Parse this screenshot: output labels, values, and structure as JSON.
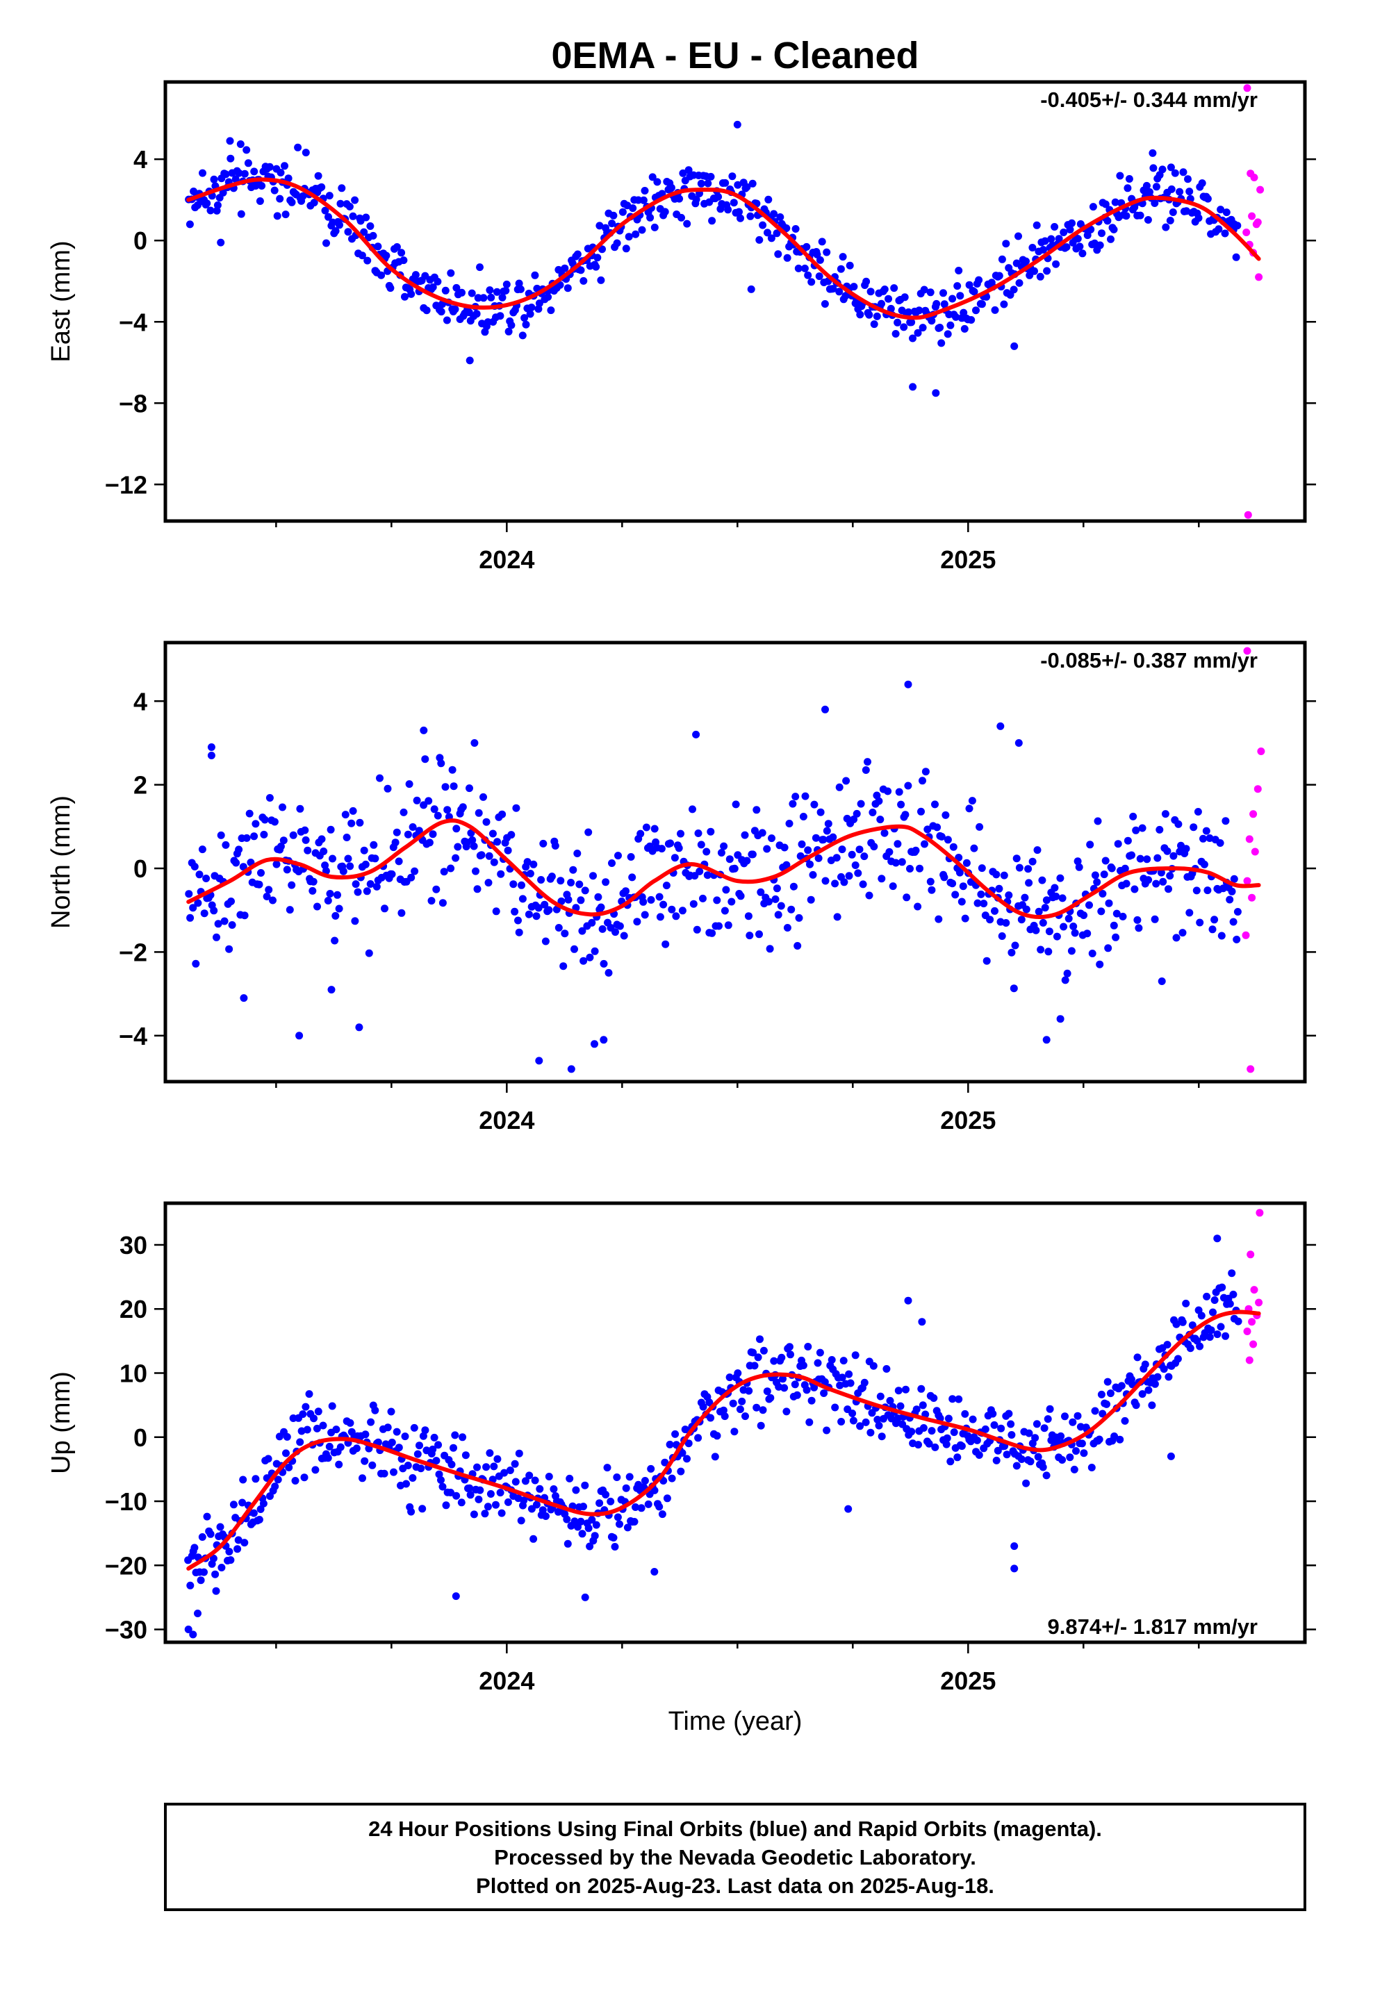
{
  "title": "0EMA  - EU - Cleaned",
  "xlabel": "Time (year)",
  "footer": {
    "line1": "24 Hour Positions Using Final Orbits (blue) and Rapid Orbits (magenta).",
    "line2": "Processed by the Nevada Geodetic Laboratory.",
    "line3": "Plotted on 2025-Aug-23. Last data on 2025-Aug-18."
  },
  "colors": {
    "final": "#0000ff",
    "rapid": "#ff00ff",
    "fit": "#ff0000"
  },
  "chart_data": [
    {
      "type": "scatter",
      "ylabel": "East (mm)",
      "rate_label": "-0.405+/- 0.344 mm/yr",
      "xlim": [
        2023.26,
        2025.73
      ],
      "ylim": [
        -13.8,
        7.8
      ],
      "yticks": [
        4,
        0,
        -4,
        -8,
        -12
      ],
      "ytick_labels": [
        "4",
        "0",
        "−4",
        "−8",
        "−12"
      ],
      "xticks": [
        2024,
        2025
      ],
      "xtick_labels": [
        "2024",
        "2025"
      ],
      "fit": {
        "x": [
          2023.31,
          2023.4,
          2023.47,
          2023.55,
          2023.65,
          2023.75,
          2023.85,
          2023.95,
          2024.05,
          2024.15,
          2024.25,
          2024.35,
          2024.42,
          2024.5,
          2024.6,
          2024.7,
          2024.8,
          2024.88,
          2024.95,
          2025.05,
          2025.15,
          2025.25,
          2025.35,
          2025.41,
          2025.5,
          2025.57,
          2025.63
        ],
        "y": [
          2.0,
          2.7,
          3.0,
          2.6,
          1.0,
          -1.4,
          -2.8,
          -3.3,
          -2.8,
          -1.3,
          0.8,
          2.2,
          2.5,
          2.2,
          0.4,
          -1.8,
          -3.3,
          -3.8,
          -3.4,
          -2.4,
          -1.0,
          0.6,
          1.8,
          2.1,
          1.7,
          0.5,
          -0.9
        ]
      },
      "final_points": {
        "anchors_x": [
          2023.31,
          2023.4,
          2023.47,
          2023.55,
          2023.65,
          2023.75,
          2023.85,
          2023.95,
          2024.05,
          2024.15,
          2024.25,
          2024.35,
          2024.42,
          2024.5,
          2024.6,
          2024.7,
          2024.8,
          2024.88,
          2024.95,
          2025.05,
          2025.15,
          2025.25,
          2025.35,
          2025.41,
          2025.5,
          2025.58
        ],
        "anchors_y": [
          2.0,
          2.7,
          3.0,
          2.6,
          1.0,
          -1.4,
          -2.8,
          -3.3,
          -2.8,
          -1.3,
          0.8,
          2.2,
          2.5,
          2.2,
          0.4,
          -1.8,
          -3.3,
          -3.8,
          -3.4,
          -2.4,
          -1.0,
          0.6,
          1.8,
          2.1,
          1.7,
          0.3
        ],
        "x_start": 2023.31,
        "x_end": 2025.585,
        "step": 0.0034,
        "spread": 1.0,
        "outliers": [
          [
            2023.4,
            4.9
          ],
          [
            2023.38,
            -0.1
          ],
          [
            2023.92,
            -5.9
          ],
          [
            2024.5,
            5.7
          ],
          [
            2024.53,
            -2.4
          ],
          [
            2024.88,
            -7.2
          ],
          [
            2024.93,
            -7.5
          ],
          [
            2025.1,
            -5.2
          ],
          [
            2025.4,
            4.3
          ],
          [
            2025.44,
            3.6
          ]
        ]
      },
      "rapid_points": [
        [
          2025.605,
          7.5
        ],
        [
          2025.612,
          3.3
        ],
        [
          2025.62,
          3.1
        ],
        [
          2025.633,
          2.5
        ],
        [
          2025.615,
          1.2
        ],
        [
          2025.625,
          0.8
        ],
        [
          2025.603,
          0.4
        ],
        [
          2025.61,
          -0.2
        ],
        [
          2025.618,
          -0.6
        ],
        [
          2025.628,
          0.9
        ],
        [
          2025.63,
          -1.8
        ],
        [
          2025.607,
          -13.5
        ]
      ]
    },
    {
      "type": "scatter",
      "ylabel": "North (mm)",
      "rate_label": "-0.085+/- 0.387 mm/yr",
      "xlim": [
        2023.26,
        2025.73
      ],
      "ylim": [
        -5.1,
        5.4
      ],
      "yticks": [
        4,
        2,
        0,
        -2,
        -4
      ],
      "ytick_labels": [
        "4",
        "2",
        "0",
        "−2",
        "−4"
      ],
      "xticks": [
        2024,
        2025
      ],
      "xtick_labels": [
        "2024",
        "2025"
      ],
      "fit": {
        "x": [
          2023.31,
          2023.4,
          2023.48,
          2023.55,
          2023.62,
          2023.7,
          2023.78,
          2023.86,
          2023.92,
          2024.0,
          2024.1,
          2024.18,
          2024.25,
          2024.32,
          2024.4,
          2024.5,
          2024.58,
          2024.66,
          2024.75,
          2024.85,
          2024.9,
          2024.97,
          2025.05,
          2025.12,
          2025.19,
          2025.27,
          2025.35,
          2025.45,
          2025.52,
          2025.58,
          2025.63
        ],
        "y": [
          -0.8,
          -0.3,
          0.2,
          0.1,
          -0.2,
          -0.1,
          0.5,
          1.1,
          1.0,
          0.2,
          -0.8,
          -1.1,
          -0.9,
          -0.3,
          0.1,
          -0.3,
          -0.2,
          0.3,
          0.8,
          1.0,
          0.8,
          0.2,
          -0.6,
          -1.1,
          -1.1,
          -0.6,
          -0.1,
          0.0,
          -0.1,
          -0.4,
          -0.4
        ]
      },
      "final_points": {
        "anchors_x": [
          2023.31,
          2023.4,
          2023.48,
          2023.55,
          2023.62,
          2023.7,
          2023.78,
          2023.86,
          2023.92,
          2024.0,
          2024.1,
          2024.18,
          2024.25,
          2024.32,
          2024.4,
          2024.5,
          2024.58,
          2024.66,
          2024.75,
          2024.85,
          2024.9,
          2024.97,
          2025.05,
          2025.12,
          2025.19,
          2025.27,
          2025.35,
          2025.45,
          2025.52,
          2025.58
        ],
        "anchors_y": [
          -0.8,
          -0.3,
          0.2,
          0.1,
          -0.2,
          -0.1,
          0.5,
          1.1,
          1.0,
          0.2,
          -0.8,
          -1.1,
          -0.9,
          -0.3,
          0.1,
          -0.3,
          -0.2,
          0.3,
          0.8,
          1.0,
          0.8,
          0.2,
          -0.6,
          -1.1,
          -1.1,
          -0.6,
          -0.1,
          0.0,
          -0.1,
          -0.4
        ],
        "x_start": 2023.31,
        "x_end": 2025.585,
        "step": 0.0034,
        "spread": 1.15,
        "outliers": [
          [
            2023.36,
            2.9
          ],
          [
            2023.36,
            2.7
          ],
          [
            2023.43,
            -3.1
          ],
          [
            2023.55,
            -4.0
          ],
          [
            2023.62,
            -2.9
          ],
          [
            2023.68,
            -3.8
          ],
          [
            2023.82,
            3.3
          ],
          [
            2023.93,
            3.0
          ],
          [
            2024.07,
            -4.6
          ],
          [
            2024.14,
            -4.8
          ],
          [
            2024.19,
            -4.2
          ],
          [
            2024.21,
            -4.1
          ],
          [
            2024.41,
            3.2
          ],
          [
            2024.69,
            3.8
          ],
          [
            2024.87,
            4.4
          ],
          [
            2025.07,
            3.4
          ],
          [
            2025.11,
            3.0
          ],
          [
            2025.17,
            -4.1
          ],
          [
            2025.2,
            -3.6
          ],
          [
            2025.42,
            -2.7
          ]
        ]
      },
      "rapid_points": [
        [
          2025.605,
          5.2
        ],
        [
          2025.635,
          2.8
        ],
        [
          2025.628,
          1.9
        ],
        [
          2025.618,
          1.3
        ],
        [
          2025.61,
          0.7
        ],
        [
          2025.622,
          0.4
        ],
        [
          2025.605,
          -0.3
        ],
        [
          2025.615,
          -0.7
        ],
        [
          2025.602,
          -1.6
        ],
        [
          2025.612,
          -4.8
        ]
      ]
    },
    {
      "type": "scatter",
      "ylabel": "Up (mm)",
      "rate_label": "9.874+/- 1.817 mm/yr",
      "xlim": [
        2023.26,
        2025.73
      ],
      "ylim": [
        -32.0,
        36.5
      ],
      "yticks": [
        30,
        20,
        10,
        0,
        -10,
        -20,
        -30
      ],
      "ytick_labels": [
        "30",
        "20",
        "10",
        "0",
        "−10",
        "−20",
        "−30"
      ],
      "xticks": [
        2024,
        2025
      ],
      "xtick_labels": [
        "2024",
        "2025"
      ],
      "fit": {
        "x": [
          2023.31,
          2023.38,
          2023.45,
          2023.52,
          2023.58,
          2023.65,
          2023.72,
          2023.8,
          2023.9,
          2024.0,
          2024.1,
          2024.18,
          2024.25,
          2024.33,
          2024.4,
          2024.48,
          2024.55,
          2024.63,
          2024.7,
          2024.8,
          2024.9,
          2025.0,
          2025.07,
          2025.13,
          2025.18,
          2025.25,
          2025.32,
          2025.4,
          2025.47,
          2025.53,
          2025.58,
          2025.63
        ],
        "y": [
          -20.5,
          -17.0,
          -10.5,
          -4.0,
          -1.0,
          -0.3,
          -1.5,
          -3.5,
          -5.8,
          -8.0,
          -10.5,
          -12.0,
          -11.0,
          -6.5,
          1.0,
          7.0,
          9.5,
          9.5,
          7.5,
          5.0,
          3.0,
          1.2,
          -0.5,
          -1.8,
          -1.8,
          0.3,
          4.5,
          10.5,
          15.5,
          18.5,
          19.5,
          19.3
        ]
      },
      "final_points": {
        "anchors_x": [
          2023.31,
          2023.38,
          2023.45,
          2023.52,
          2023.58,
          2023.65,
          2023.72,
          2023.8,
          2023.9,
          2024.0,
          2024.1,
          2024.18,
          2024.25,
          2024.33,
          2024.4,
          2024.48,
          2024.55,
          2024.63,
          2024.7,
          2024.8,
          2024.9,
          2025.0,
          2025.07,
          2025.13,
          2025.18,
          2025.25,
          2025.32,
          2025.4,
          2025.47,
          2025.53,
          2025.58
        ],
        "anchors_y": [
          -20.5,
          -17.0,
          -10.5,
          -4.0,
          -1.0,
          -0.3,
          -1.5,
          -3.5,
          -5.8,
          -8.0,
          -10.5,
          -12.0,
          -11.0,
          -6.5,
          1.0,
          7.0,
          9.5,
          9.5,
          7.5,
          5.0,
          3.0,
          1.2,
          -0.5,
          -1.8,
          -1.8,
          0.3,
          4.5,
          10.5,
          15.5,
          18.5,
          19.5
        ],
        "x_start": 2023.31,
        "x_end": 2025.585,
        "step": 0.0034,
        "spread": 4.2,
        "outliers": [
          [
            2023.31,
            -30.0
          ],
          [
            2023.32,
            -30.8
          ],
          [
            2023.33,
            -27.5
          ],
          [
            2023.37,
            -24.0
          ],
          [
            2023.89,
            -24.8
          ],
          [
            2024.17,
            -25.0
          ],
          [
            2024.32,
            -21.0
          ],
          [
            2024.74,
            -11.2
          ],
          [
            2024.87,
            21.3
          ],
          [
            2024.9,
            18.0
          ],
          [
            2025.1,
            -20.5
          ],
          [
            2025.1,
            -17.0
          ],
          [
            2025.44,
            -3.0
          ],
          [
            2025.54,
            31.0
          ]
        ]
      },
      "rapid_points": [
        [
          2025.632,
          35.0
        ],
        [
          2025.612,
          28.5
        ],
        [
          2025.62,
          23.0
        ],
        [
          2025.63,
          21.0
        ],
        [
          2025.608,
          20.0
        ],
        [
          2025.626,
          19.0
        ],
        [
          2025.615,
          18.0
        ],
        [
          2025.605,
          16.5
        ],
        [
          2025.618,
          14.5
        ],
        [
          2025.61,
          12.0
        ]
      ]
    }
  ]
}
